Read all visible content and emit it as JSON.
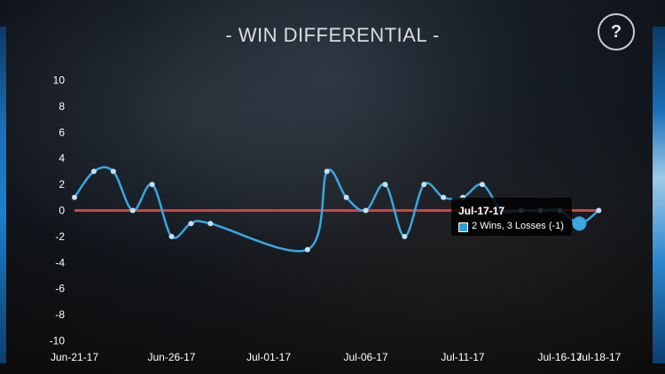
{
  "header": {
    "title": "- WIN DIFFERENTIAL -",
    "help_label": "?"
  },
  "colors": {
    "line": "#3aa6e3",
    "point": "#bfe3f7",
    "zero_line": "#d2433e",
    "axis_text": "#ffffff"
  },
  "tooltip": {
    "date": "Jul-17-17",
    "text": "2 Wins, 3 Losses (-1)"
  },
  "chart_data": {
    "type": "line",
    "title": "- WIN DIFFERENTIAL -",
    "xlabel": "",
    "ylabel": "",
    "ylim": [
      -10,
      10
    ],
    "yticks": [
      10,
      8,
      6,
      4,
      2,
      0,
      -2,
      -4,
      -6,
      -8,
      -10
    ],
    "xticks": [
      "Jun-21-17",
      "Jun-26-17",
      "Jul-01-17",
      "Jul-06-17",
      "Jul-11-17",
      "Jul-16-17",
      "Jul-18-17"
    ],
    "zero_line": true,
    "grid": false,
    "series": [
      {
        "name": "",
        "points": [
          {
            "x": "Jun-21-17",
            "y": 1
          },
          {
            "x": "Jun-22-17",
            "y": 3
          },
          {
            "x": "Jun-23-17",
            "y": 3
          },
          {
            "x": "Jun-24-17",
            "y": 0
          },
          {
            "x": "Jun-25-17",
            "y": 2
          },
          {
            "x": "Jun-26-17",
            "y": -2
          },
          {
            "x": "Jun-27-17",
            "y": -1
          },
          {
            "x": "Jun-28-17",
            "y": -1
          },
          {
            "x": "Jul-03-17",
            "y": -3
          },
          {
            "x": "Jul-04-17",
            "y": 3
          },
          {
            "x": "Jul-05-17",
            "y": 1
          },
          {
            "x": "Jul-06-17",
            "y": 0
          },
          {
            "x": "Jul-07-17",
            "y": 2
          },
          {
            "x": "Jul-08-17",
            "y": -2
          },
          {
            "x": "Jul-09-17",
            "y": 2
          },
          {
            "x": "Jul-10-17",
            "y": 1
          },
          {
            "x": "Jul-11-17",
            "y": 1
          },
          {
            "x": "Jul-12-17",
            "y": 2
          },
          {
            "x": "Jul-13-17",
            "y": 0
          },
          {
            "x": "Jul-14-17",
            "y": 0
          },
          {
            "x": "Jul-15-17",
            "y": 0
          },
          {
            "x": "Jul-16-17",
            "y": 0
          },
          {
            "x": "Jul-17-17",
            "y": -1
          },
          {
            "x": "Jul-18-17",
            "y": 0
          }
        ]
      }
    ],
    "highlighted": {
      "x": "Jul-17-17",
      "y": -1
    }
  }
}
